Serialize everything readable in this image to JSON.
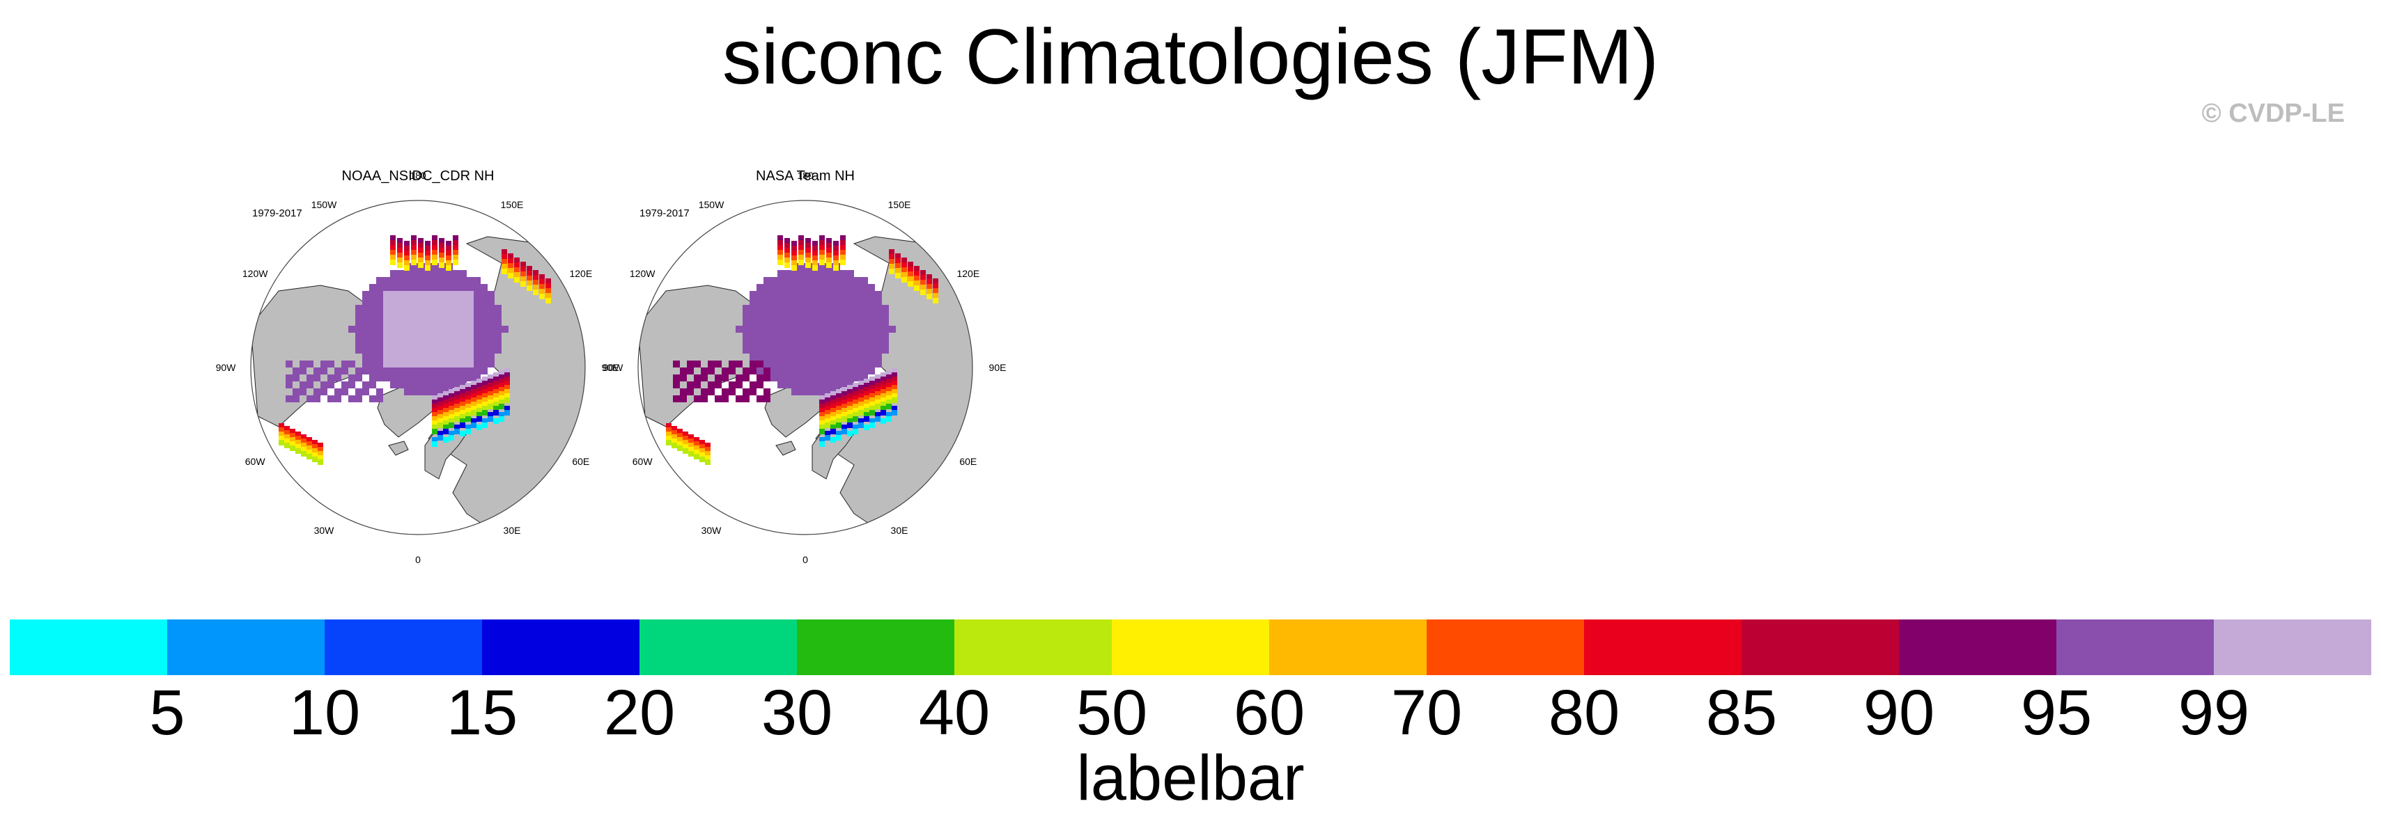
{
  "title": "siconc Climatologies (JFM)",
  "watermark": "© CVDP-LE",
  "lon_labels": [
    "180",
    "150E",
    "120E",
    "90E",
    "60E",
    "30E",
    "0",
    "30W",
    "60W",
    "90W",
    "120W",
    "150W"
  ],
  "panels": [
    {
      "title": "NOAA_NSIDC_CDR NH",
      "years": "1979-2017"
    },
    {
      "title": "NASA Team NH",
      "years": "1979-2017"
    }
  ],
  "colors": {
    "land": "#bdbdbd",
    "bins": [
      "#00fdfd",
      "#0096fb",
      "#0544fb",
      "#0000e0",
      "#00d77d",
      "#24bb11",
      "#bbe90d",
      "#ffef00",
      "#ffb900",
      "#ff4b00",
      "#e8001c",
      "#bd0034",
      "#82006a",
      "#8a4fad",
      "#c5aad8"
    ]
  },
  "labelbar": {
    "ticks": [
      "5",
      "10",
      "15",
      "20",
      "30",
      "40",
      "50",
      "60",
      "70",
      "80",
      "85",
      "90",
      "95",
      "99"
    ],
    "title": "labelbar"
  },
  "chart_data": {
    "type": "heatmap",
    "title": "siconc Climatologies (JFM)",
    "projection": "north polar stereographic",
    "panels": [
      "NOAA_NSIDC_CDR NH",
      "NASA Team NH"
    ],
    "period": "1979-2017",
    "levels": [
      5,
      10,
      15,
      20,
      30,
      40,
      50,
      60,
      70,
      80,
      85,
      90,
      95,
      99
    ],
    "colorbar_title": "labelbar"
  }
}
